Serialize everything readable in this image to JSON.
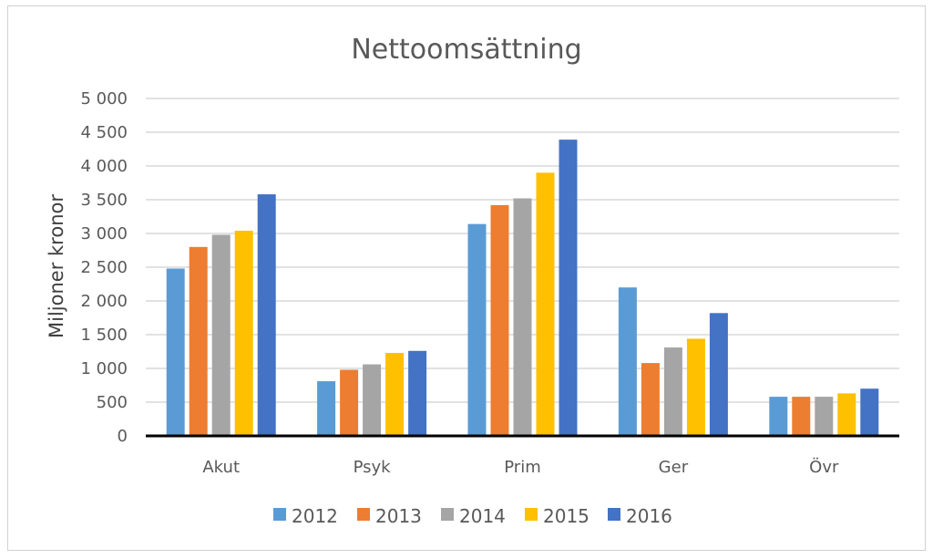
{
  "chart_data": {
    "type": "bar",
    "title": "Nettoomsättning",
    "xlabel": "",
    "ylabel": "Miljoner kronor",
    "ylim": [
      0,
      5000
    ],
    "yticks": [
      0,
      500,
      1000,
      1500,
      2000,
      2500,
      3000,
      3500,
      4000,
      4500,
      5000
    ],
    "ytick_labels": [
      "0",
      "500",
      "1 000",
      "1 500",
      "2 000",
      "2 500",
      "3 000",
      "3 500",
      "4 000",
      "4 500",
      "5 000"
    ],
    "grid": true,
    "legend_position": "bottom",
    "categories": [
      "Akut",
      "Psyk",
      "Prim",
      "Ger",
      "Övr"
    ],
    "series": [
      {
        "name": "2012",
        "color": "#5B9BD5",
        "values": [
          2480,
          810,
          3140,
          2200,
          580
        ]
      },
      {
        "name": "2013",
        "color": "#ED7D31",
        "values": [
          2800,
          980,
          3420,
          1080,
          580
        ]
      },
      {
        "name": "2014",
        "color": "#A5A5A5",
        "values": [
          2980,
          1060,
          3520,
          1310,
          580
        ]
      },
      {
        "name": "2015",
        "color": "#FFC000",
        "values": [
          3040,
          1230,
          3900,
          1440,
          630
        ]
      },
      {
        "name": "2016",
        "color": "#4472C4",
        "values": [
          3580,
          1260,
          4390,
          1820,
          700
        ]
      }
    ]
  }
}
